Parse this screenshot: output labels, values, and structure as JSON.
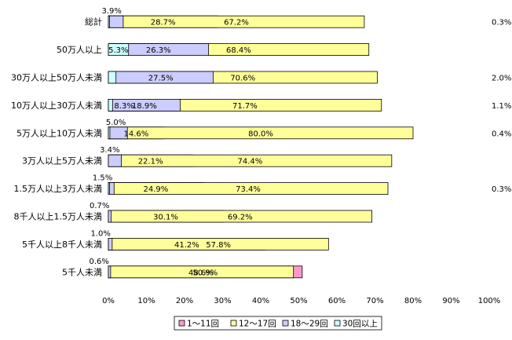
{
  "chart_data": {
    "type": "bar",
    "orientation": "horizontal",
    "stacked": "percent",
    "categories": [
      "総計",
      "50万人以上",
      "30万人以上50万人未満",
      "10万人以上30万人未満",
      "5万人以上10万人未満",
      "3万人以上5万人未満",
      "1.5万人以上3万人未満",
      "8千人以上1.5万人未満",
      "5千人以上8千人未満",
      "5千人未満"
    ],
    "series": [
      {
        "name": "1～11回",
        "color": "#ff99cc",
        "values": [
          28.7,
          0,
          0,
          8.3,
          14.6,
          22.1,
          24.9,
          30.1,
          41.2,
          50.9
        ],
        "labels": [
          "28.7%",
          "",
          "",
          "8.3%",
          "14.6%",
          "22.1%",
          "24.9%",
          "30.1%",
          "41.2%",
          "50.9%"
        ]
      },
      {
        "name": "12～17回",
        "color": "#ffff99",
        "values": [
          67.2,
          68.4,
          70.6,
          71.7,
          80.0,
          74.4,
          73.4,
          69.2,
          57.8,
          48.6
        ],
        "labels": [
          "67.2%",
          "68.4%",
          "70.6%",
          "71.7%",
          "80.0%",
          "74.4%",
          "73.4%",
          "69.2%",
          "57.8%",
          "48.6%"
        ]
      },
      {
        "name": "18～29回",
        "color": "#ccccff",
        "values": [
          3.9,
          26.3,
          27.5,
          18.9,
          5.0,
          3.4,
          1.5,
          0.7,
          1.0,
          0.6
        ],
        "labels": [
          "3.9%",
          "26.3%",
          "27.5%",
          "18.9%",
          "5.0%",
          "3.4%",
          "1.5%",
          "0.7%",
          "1.0%",
          "0.6%"
        ]
      },
      {
        "name": "30回以上",
        "color": "#ccffff",
        "values": [
          0.3,
          5.3,
          2.0,
          1.1,
          0.4,
          0,
          0.3,
          0,
          0,
          0
        ],
        "labels": [
          "0.3%",
          "5.3%",
          "2.0%",
          "1.1%",
          "0.4%",
          "",
          "0.3%",
          "",
          "",
          ""
        ]
      }
    ],
    "xlim": [
      0,
      100
    ],
    "x_ticks": [
      "0%",
      "10%",
      "20%",
      "30%",
      "40%",
      "50%",
      "60%",
      "70%",
      "80%",
      "90%",
      "100%"
    ],
    "grid": false,
    "legend_position": "bottom"
  }
}
